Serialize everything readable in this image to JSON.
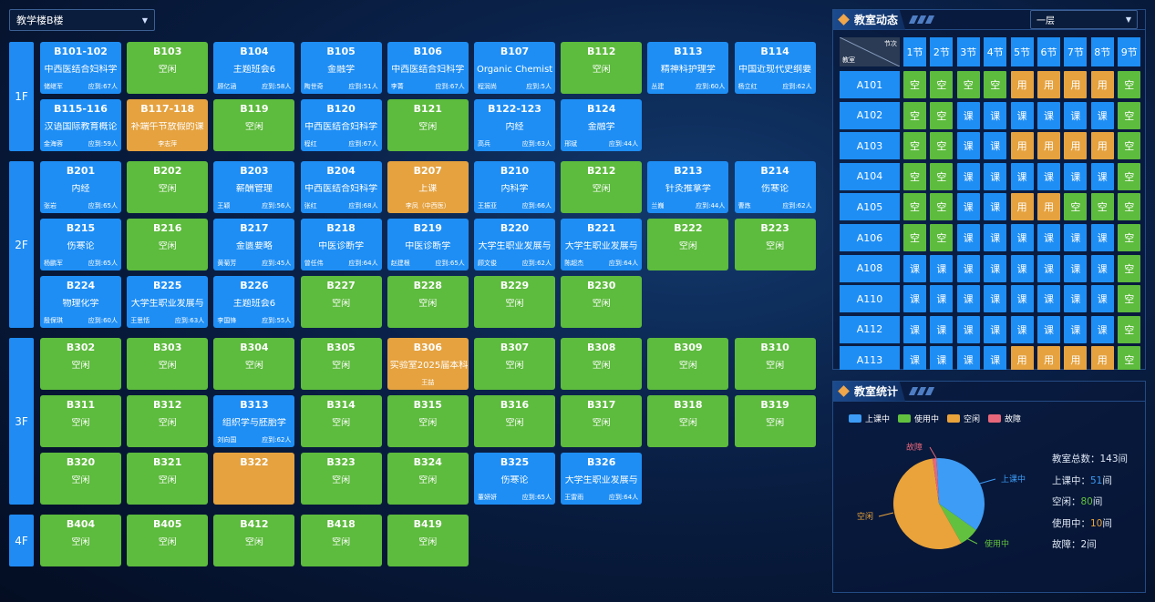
{
  "building_select": {
    "value": "教学楼B楼"
  },
  "floors": [
    {
      "label": "1F",
      "rows": [
        [
          {
            "code": "B101-102",
            "status": "blue",
            "course": "中西医结合妇科学",
            "teacher": "储继军",
            "count": "应到:67人"
          },
          {
            "code": "B103",
            "status": "green",
            "course": "空闲"
          },
          {
            "code": "B104",
            "status": "blue",
            "course": "主题班会6",
            "teacher": "顾亿涵",
            "count": "应到:58人"
          },
          {
            "code": "B105",
            "status": "blue",
            "course": "金融学",
            "teacher": "陶世奇",
            "count": "应到:51人"
          },
          {
            "code": "B106",
            "status": "blue",
            "course": "中西医结合妇科学",
            "teacher": "李菁",
            "count": "应到:67人"
          },
          {
            "code": "B107",
            "status": "blue",
            "course": "Organic Chemist",
            "teacher": "程润尚",
            "count": "应到:5人"
          },
          {
            "code": "B112",
            "status": "green",
            "course": "空闲"
          },
          {
            "code": "B113",
            "status": "blue",
            "course": "精神科护理学",
            "teacher": "丛建",
            "count": "应到:60人"
          },
          {
            "code": "B114",
            "status": "blue",
            "course": "中国近现代史纲要",
            "teacher": "杨立红",
            "count": "应到:62人"
          }
        ],
        [
          {
            "code": "B115-116",
            "status": "blue",
            "course": "汉语国际教育概论",
            "teacher": "金海蓉",
            "count": "应到:59人"
          },
          {
            "code": "B117-118",
            "status": "orange",
            "course": "补端午节放假的课",
            "teacher": "李志萍",
            "count": ""
          },
          {
            "code": "B119",
            "status": "green",
            "course": "空闲"
          },
          {
            "code": "B120",
            "status": "blue",
            "course": "中西医结合妇科学",
            "teacher": "程红",
            "count": "应到:67人"
          },
          {
            "code": "B121",
            "status": "green",
            "course": "空闲"
          },
          {
            "code": "B122-123",
            "status": "blue",
            "course": "内经",
            "teacher": "高兵",
            "count": "应到:63人"
          },
          {
            "code": "B124",
            "status": "blue",
            "course": "金融学",
            "teacher": "邢斌",
            "count": "应到:44人"
          }
        ]
      ]
    },
    {
      "label": "2F",
      "rows": [
        [
          {
            "code": "B201",
            "status": "blue",
            "course": "内经",
            "teacher": "张岩",
            "count": "应到:65人"
          },
          {
            "code": "B202",
            "status": "green",
            "course": "空闲"
          },
          {
            "code": "B203",
            "status": "blue",
            "course": "薪酬管理",
            "teacher": "王颖",
            "count": "应到:56人"
          },
          {
            "code": "B204",
            "status": "blue",
            "course": "中西医结合妇科学",
            "teacher": "张红",
            "count": "应到:68人"
          },
          {
            "code": "B207",
            "status": "orange",
            "course": "上课",
            "teacher": "李凤（中西医）",
            "count": ""
          },
          {
            "code": "B210",
            "status": "blue",
            "course": "内科学",
            "teacher": "王振亚",
            "count": "应到:66人"
          },
          {
            "code": "B212",
            "status": "green",
            "course": "空闲"
          },
          {
            "code": "B213",
            "status": "blue",
            "course": "针灸推拿学",
            "teacher": "兰巍",
            "count": "应到:44人"
          },
          {
            "code": "B214",
            "status": "blue",
            "course": "伤寒论",
            "teacher": "曹炼",
            "count": "应到:62人"
          }
        ],
        [
          {
            "code": "B215",
            "status": "blue",
            "course": "伤寒论",
            "teacher": "杨鹏军",
            "count": "应到:65人"
          },
          {
            "code": "B216",
            "status": "green",
            "course": "空闲"
          },
          {
            "code": "B217",
            "status": "blue",
            "course": "金匮要略",
            "teacher": "黄菊芳",
            "count": "应到:45人"
          },
          {
            "code": "B218",
            "status": "blue",
            "course": "中医诊断学",
            "teacher": "曾任伟",
            "count": "应到:64人"
          },
          {
            "code": "B219",
            "status": "blue",
            "course": "中医诊断学",
            "teacher": "赵建根",
            "count": "应到:65人"
          },
          {
            "code": "B220",
            "status": "blue",
            "course": "大学生职业发展与",
            "teacher": "顾文俊",
            "count": "应到:62人"
          },
          {
            "code": "B221",
            "status": "blue",
            "course": "大学生职业发展与",
            "teacher": "陈超杰",
            "count": "应到:64人"
          },
          {
            "code": "B222",
            "status": "green",
            "course": "空闲"
          },
          {
            "code": "B223",
            "status": "green",
            "course": "空闲"
          }
        ],
        [
          {
            "code": "B224",
            "status": "blue",
            "course": "物理化学",
            "teacher": "殷保琪",
            "count": "应到:60人"
          },
          {
            "code": "B225",
            "status": "blue",
            "course": "大学生职业发展与",
            "teacher": "王思恬",
            "count": "应到:63人"
          },
          {
            "code": "B226",
            "status": "blue",
            "course": "主题班会6",
            "teacher": "李国锋",
            "count": "应到:55人"
          },
          {
            "code": "B227",
            "status": "green",
            "course": "空闲"
          },
          {
            "code": "B228",
            "status": "green",
            "course": "空闲"
          },
          {
            "code": "B229",
            "status": "green",
            "course": "空闲"
          },
          {
            "code": "B230",
            "status": "green",
            "course": "空闲"
          }
        ]
      ]
    },
    {
      "label": "3F",
      "rows": [
        [
          {
            "code": "B302",
            "status": "green",
            "course": "空闲"
          },
          {
            "code": "B303",
            "status": "green",
            "course": "空闲"
          },
          {
            "code": "B304",
            "status": "green",
            "course": "空闲"
          },
          {
            "code": "B305",
            "status": "green",
            "course": "空闲"
          },
          {
            "code": "B306",
            "status": "orange",
            "course": "实验室2025届本科",
            "teacher": "王喆",
            "count": ""
          },
          {
            "code": "B307",
            "status": "green",
            "course": "空闲"
          },
          {
            "code": "B308",
            "status": "green",
            "course": "空闲"
          },
          {
            "code": "B309",
            "status": "green",
            "course": "空闲"
          },
          {
            "code": "B310",
            "status": "green",
            "course": "空闲"
          }
        ],
        [
          {
            "code": "B311",
            "status": "green",
            "course": "空闲"
          },
          {
            "code": "B312",
            "status": "green",
            "course": "空闲"
          },
          {
            "code": "B313",
            "status": "blue",
            "course": "组织学与胚胎学",
            "teacher": "刘向国",
            "count": "应到:62人"
          },
          {
            "code": "B314",
            "status": "green",
            "course": "空闲"
          },
          {
            "code": "B315",
            "status": "green",
            "course": "空闲"
          },
          {
            "code": "B316",
            "status": "green",
            "course": "空闲"
          },
          {
            "code": "B317",
            "status": "green",
            "course": "空闲"
          },
          {
            "code": "B318",
            "status": "green",
            "course": "空闲"
          },
          {
            "code": "B319",
            "status": "green",
            "course": "空闲"
          }
        ],
        [
          {
            "code": "B320",
            "status": "green",
            "course": "空闲"
          },
          {
            "code": "B321",
            "status": "green",
            "course": "空闲"
          },
          {
            "code": "B322",
            "status": "orange",
            "course": ""
          },
          {
            "code": "B323",
            "status": "green",
            "course": "空闲"
          },
          {
            "code": "B324",
            "status": "green",
            "course": "空闲"
          },
          {
            "code": "B325",
            "status": "blue",
            "course": "伤寒论",
            "teacher": "董妍妍",
            "count": "应到:65人"
          },
          {
            "code": "B326",
            "status": "blue",
            "course": "大学生职业发展与",
            "teacher": "王雷雨",
            "count": "应到:64人"
          }
        ]
      ]
    },
    {
      "label": "4F",
      "rows": [
        [
          {
            "code": "B404",
            "status": "green",
            "course": "空闲"
          },
          {
            "code": "B405",
            "status": "green",
            "course": "空闲"
          },
          {
            "code": "B412",
            "status": "green",
            "course": "空闲"
          },
          {
            "code": "B418",
            "status": "green",
            "course": "空闲"
          },
          {
            "code": "B419",
            "status": "green",
            "course": "空闲"
          }
        ]
      ]
    }
  ],
  "dynamics": {
    "title": "教室动态",
    "floor_select": "一层",
    "corner_top": "节次",
    "corner_bottom": "教室",
    "periods": [
      "1节",
      "2节",
      "3节",
      "4节",
      "5节",
      "6节",
      "7节",
      "8节",
      "9节"
    ],
    "status_text": {
      "k": "空",
      "y": "用",
      "c": "课"
    },
    "rows": [
      {
        "room": "A101",
        "cells": [
          "k",
          "k",
          "k",
          "k",
          "y",
          "y",
          "y",
          "y",
          "k"
        ]
      },
      {
        "room": "A102",
        "cells": [
          "k",
          "k",
          "c",
          "c",
          "c",
          "c",
          "c",
          "c",
          "k"
        ]
      },
      {
        "room": "A103",
        "cells": [
          "k",
          "k",
          "c",
          "c",
          "y",
          "y",
          "y",
          "y",
          "k"
        ]
      },
      {
        "room": "A104",
        "cells": [
          "k",
          "k",
          "c",
          "c",
          "c",
          "c",
          "c",
          "c",
          "k"
        ]
      },
      {
        "room": "A105",
        "cells": [
          "k",
          "k",
          "c",
          "c",
          "y",
          "y",
          "k",
          "k",
          "k"
        ]
      },
      {
        "room": "A106",
        "cells": [
          "k",
          "k",
          "c",
          "c",
          "c",
          "c",
          "c",
          "c",
          "k"
        ]
      },
      {
        "room": "A108",
        "cells": [
          "c",
          "c",
          "c",
          "c",
          "c",
          "c",
          "c",
          "c",
          "k"
        ]
      },
      {
        "room": "A110",
        "cells": [
          "c",
          "c",
          "c",
          "c",
          "c",
          "c",
          "c",
          "c",
          "k"
        ]
      },
      {
        "room": "A112",
        "cells": [
          "c",
          "c",
          "c",
          "c",
          "c",
          "c",
          "c",
          "c",
          "k"
        ]
      },
      {
        "room": "A113",
        "cells": [
          "c",
          "c",
          "c",
          "c",
          "y",
          "y",
          "y",
          "y",
          "k"
        ]
      }
    ]
  },
  "stats": {
    "title": "教室统计",
    "legend": [
      {
        "label": "上课中",
        "color": "#3d9cf5"
      },
      {
        "label": "使用中",
        "color": "#62c23f"
      },
      {
        "label": "空闲",
        "color": "#e9a33a"
      },
      {
        "label": "故障",
        "color": "#e8677a"
      }
    ],
    "pie": [
      {
        "label": "上课中",
        "value": 51,
        "color": "#3d9cf5"
      },
      {
        "label": "使用中",
        "value": 10,
        "color": "#62c23f"
      },
      {
        "label": "空闲",
        "value": 80,
        "color": "#e9a33a"
      },
      {
        "label": "故障",
        "value": 2,
        "color": "#e8677a"
      }
    ],
    "total_prefix": "教室总数：",
    "total_value": "143",
    "total_suffix": "间",
    "lines": [
      {
        "label": "上课中：",
        "value": "51",
        "suffix": "间",
        "color": "#3d9cf5"
      },
      {
        "label": "空闲：",
        "value": "80",
        "suffix": "间",
        "color": "#62c23f"
      },
      {
        "label": "使用中：",
        "value": "10",
        "suffix": "间",
        "color": "#e9a33a"
      },
      {
        "label": "故障：",
        "value": "2",
        "suffix": "间",
        "color": "#dfe8f5"
      }
    ]
  }
}
